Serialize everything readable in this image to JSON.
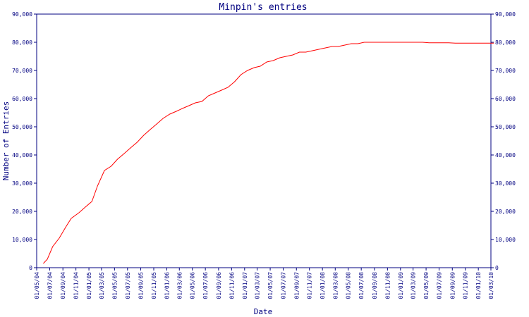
{
  "chart_data": {
    "type": "line",
    "title": "Minpin's entries",
    "xlabel": "Date",
    "ylabel": "Number of Entries",
    "ylim": [
      0,
      90000
    ],
    "yticks": [
      "0",
      "10,000",
      "20,000",
      "30,000",
      "40,000",
      "50,000",
      "60,000",
      "70,000",
      "80,000",
      "90,000"
    ],
    "xticks": [
      "01/05/04",
      "01/07/04",
      "01/09/04",
      "01/11/04",
      "01/01/05",
      "01/03/05",
      "01/05/05",
      "01/07/05",
      "01/09/05",
      "01/11/05",
      "01/01/06",
      "01/03/06",
      "01/05/06",
      "01/07/06",
      "01/09/06",
      "01/11/06",
      "01/01/07",
      "01/03/07",
      "01/05/07",
      "01/07/07",
      "01/09/07",
      "01/11/07",
      "01/01/08",
      "01/03/08",
      "01/05/08",
      "01/07/08",
      "01/09/08",
      "01/11/08",
      "01/01/09",
      "01/03/09",
      "01/05/09",
      "01/07/09",
      "01/09/09",
      "01/11/09",
      "01/01/10",
      "01/03/10"
    ],
    "grid": false,
    "line_color": "#ff0000",
    "axis_color": "#000080",
    "series": [
      {
        "x": [
          "2004-06-01",
          "2004-06-20",
          "2004-07-15",
          "2004-08-15",
          "2004-09-15",
          "2004-10-10",
          "2004-11-15",
          "2004-12-15",
          "2005-01-15",
          "2005-02-10",
          "2005-03-15",
          "2005-04-15",
          "2005-05-15",
          "2005-06-15",
          "2005-07-15",
          "2005-08-15",
          "2005-09-15",
          "2005-10-15",
          "2005-11-15",
          "2005-12-15",
          "2006-01-15",
          "2006-02-15",
          "2006-03-15",
          "2006-04-15",
          "2006-05-15",
          "2006-06-15",
          "2006-07-15",
          "2006-08-15",
          "2006-09-15",
          "2006-10-15",
          "2006-11-15",
          "2006-12-15",
          "2007-01-15",
          "2007-02-15",
          "2007-03-15",
          "2007-04-15",
          "2007-05-15",
          "2007-06-15",
          "2007-07-15",
          "2007-08-15",
          "2007-09-15",
          "2007-10-15",
          "2007-11-15",
          "2007-12-15",
          "2008-01-15",
          "2008-02-15",
          "2008-03-15",
          "2008-04-15",
          "2008-05-15",
          "2008-06-15",
          "2008-07-15",
          "2008-08-15",
          "2008-09-15",
          "2008-10-15",
          "2008-11-15",
          "2008-12-15",
          "2009-01-15",
          "2009-02-15",
          "2009-03-15",
          "2009-04-15",
          "2009-05-15",
          "2009-06-15",
          "2009-07-15",
          "2009-08-15",
          "2009-09-15",
          "2009-10-15",
          "2009-11-15",
          "2009-12-15",
          "2010-01-15",
          "2010-02-15",
          "2010-03-15"
        ],
        "values": [
          1500,
          3000,
          7500,
          10500,
          14500,
          17500,
          19500,
          21500,
          23500,
          29000,
          34500,
          36000,
          38500,
          40500,
          42500,
          44500,
          47000,
          49000,
          51000,
          53000,
          54500,
          55500,
          56500,
          57500,
          58500,
          59000,
          61000,
          62000,
          63000,
          64000,
          66000,
          68500,
          70000,
          71000,
          71500,
          73000,
          73500,
          74500,
          75000,
          75500,
          76500,
          76500,
          77000,
          77500,
          78000,
          78500,
          78500,
          79000,
          79500,
          79500,
          80000,
          80000,
          80000,
          80000,
          80000,
          80000,
          80000,
          80000,
          80000,
          80000,
          79800,
          79800,
          79800,
          79800,
          79700,
          79700,
          79700,
          79700,
          79700,
          79700,
          79700
        ]
      }
    ]
  }
}
